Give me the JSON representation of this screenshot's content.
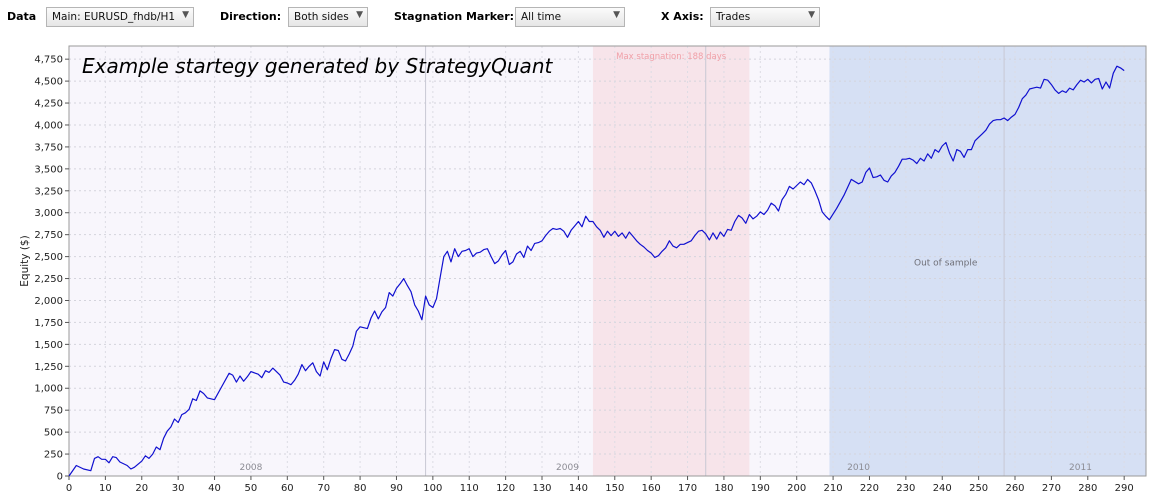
{
  "toolbar": {
    "data_label": "Data",
    "data_value": "Main: EURUSD_fhdb/H1",
    "direction_label": "Direction:",
    "direction_value": "Both sides",
    "stagnation_label": "Stagnation Marker:",
    "stagnation_value": "All time",
    "xaxis_label": "X Axis:",
    "xaxis_value": "Trades",
    "dropdown_arrow_icon": "chevron-down-icon"
  },
  "chart_data": {
    "type": "line",
    "title": "Example startegy generated by StrategyQuant",
    "ylabel": "Equity ($)",
    "xlabel": "",
    "xlim": [
      0,
      296
    ],
    "ylim": [
      0,
      4900
    ],
    "grid": true,
    "x_ticks": [
      0,
      10,
      20,
      30,
      40,
      50,
      60,
      70,
      80,
      90,
      100,
      110,
      120,
      130,
      140,
      150,
      160,
      170,
      180,
      190,
      200,
      210,
      220,
      230,
      240,
      250,
      260,
      270,
      280,
      290
    ],
    "y_ticks": [
      0,
      250,
      500,
      750,
      1000,
      1250,
      1500,
      1750,
      2000,
      2250,
      2500,
      2750,
      3000,
      3250,
      3500,
      3750,
      4000,
      4250,
      4500,
      4750
    ],
    "year_labels": [
      {
        "label": "2008",
        "x": 50
      },
      {
        "label": "2009",
        "x": 137
      },
      {
        "label": "2010",
        "x": 217
      },
      {
        "label": "2011",
        "x": 278
      }
    ],
    "year_boundaries": [
      98,
      175,
      257
    ],
    "stagnation": {
      "label": "Max stagnation: 188 days",
      "start": 144,
      "end": 187
    },
    "out_of_sample": {
      "label": "Out of sample",
      "start": 209,
      "end": 296
    },
    "colors": {
      "line": "#1010d0",
      "stagnation_band": "#f7e4ea",
      "stagnation_text": "#f0a0a8",
      "oos_band": "#d6e0f4",
      "plot_bg": "#f8f6fc"
    },
    "series": [
      {
        "values": [
          [
            0,
            0
          ],
          [
            2,
            120
          ],
          [
            4,
            80
          ],
          [
            6,
            60
          ],
          [
            7,
            200
          ],
          [
            8,
            220
          ],
          [
            9,
            190
          ],
          [
            10,
            190
          ],
          [
            11,
            150
          ],
          [
            12,
            220
          ],
          [
            13,
            210
          ],
          [
            14,
            160
          ],
          [
            16,
            120
          ],
          [
            17,
            80
          ],
          [
            18,
            100
          ],
          [
            20,
            170
          ],
          [
            21,
            230
          ],
          [
            22,
            200
          ],
          [
            23,
            250
          ],
          [
            24,
            330
          ],
          [
            25,
            300
          ],
          [
            26,
            430
          ],
          [
            27,
            510
          ],
          [
            28,
            560
          ],
          [
            29,
            650
          ],
          [
            30,
            610
          ],
          [
            31,
            700
          ],
          [
            32,
            720
          ],
          [
            33,
            760
          ],
          [
            34,
            880
          ],
          [
            35,
            860
          ],
          [
            36,
            970
          ],
          [
            37,
            940
          ],
          [
            38,
            890
          ],
          [
            40,
            870
          ],
          [
            42,
            1020
          ],
          [
            44,
            1170
          ],
          [
            45,
            1150
          ],
          [
            46,
            1070
          ],
          [
            47,
            1140
          ],
          [
            48,
            1080
          ],
          [
            49,
            1130
          ],
          [
            50,
            1190
          ],
          [
            52,
            1160
          ],
          [
            53,
            1120
          ],
          [
            54,
            1200
          ],
          [
            55,
            1180
          ],
          [
            56,
            1230
          ],
          [
            57,
            1190
          ],
          [
            58,
            1150
          ],
          [
            59,
            1070
          ],
          [
            60,
            1060
          ],
          [
            61,
            1040
          ],
          [
            62,
            1090
          ],
          [
            63,
            1160
          ],
          [
            64,
            1270
          ],
          [
            65,
            1200
          ],
          [
            66,
            1250
          ],
          [
            67,
            1290
          ],
          [
            68,
            1190
          ],
          [
            69,
            1140
          ],
          [
            70,
            1300
          ],
          [
            71,
            1210
          ],
          [
            72,
            1340
          ],
          [
            73,
            1440
          ],
          [
            74,
            1430
          ],
          [
            75,
            1330
          ],
          [
            76,
            1310
          ],
          [
            77,
            1390
          ],
          [
            78,
            1480
          ],
          [
            79,
            1650
          ],
          [
            80,
            1700
          ],
          [
            81,
            1690
          ],
          [
            82,
            1680
          ],
          [
            83,
            1800
          ],
          [
            84,
            1880
          ],
          [
            85,
            1790
          ],
          [
            86,
            1870
          ],
          [
            87,
            1920
          ],
          [
            88,
            2090
          ],
          [
            89,
            2050
          ],
          [
            90,
            2140
          ],
          [
            91,
            2190
          ],
          [
            92,
            2250
          ],
          [
            93,
            2170
          ],
          [
            94,
            2100
          ],
          [
            95,
            1950
          ],
          [
            96,
            1880
          ],
          [
            97,
            1780
          ],
          [
            98,
            2050
          ],
          [
            99,
            1950
          ],
          [
            100,
            1920
          ],
          [
            101,
            2020
          ],
          [
            102,
            2260
          ],
          [
            103,
            2500
          ],
          [
            104,
            2560
          ],
          [
            105,
            2440
          ],
          [
            106,
            2590
          ],
          [
            107,
            2500
          ],
          [
            108,
            2560
          ],
          [
            109,
            2570
          ],
          [
            110,
            2590
          ],
          [
            111,
            2500
          ],
          [
            112,
            2540
          ],
          [
            113,
            2550
          ],
          [
            114,
            2580
          ],
          [
            115,
            2590
          ],
          [
            116,
            2500
          ],
          [
            117,
            2420
          ],
          [
            118,
            2450
          ],
          [
            119,
            2520
          ],
          [
            120,
            2570
          ],
          [
            121,
            2410
          ],
          [
            122,
            2440
          ],
          [
            123,
            2530
          ],
          [
            124,
            2560
          ],
          [
            125,
            2490
          ],
          [
            126,
            2620
          ],
          [
            127,
            2570
          ],
          [
            128,
            2650
          ],
          [
            129,
            2660
          ],
          [
            130,
            2680
          ],
          [
            131,
            2740
          ],
          [
            132,
            2790
          ],
          [
            133,
            2820
          ],
          [
            134,
            2810
          ],
          [
            135,
            2820
          ],
          [
            136,
            2790
          ],
          [
            137,
            2720
          ],
          [
            138,
            2800
          ],
          [
            139,
            2850
          ],
          [
            140,
            2900
          ],
          [
            141,
            2840
          ],
          [
            142,
            2960
          ],
          [
            143,
            2900
          ],
          [
            144,
            2900
          ],
          [
            145,
            2840
          ],
          [
            146,
            2800
          ],
          [
            147,
            2720
          ],
          [
            148,
            2790
          ],
          [
            149,
            2740
          ],
          [
            150,
            2790
          ],
          [
            151,
            2730
          ],
          [
            152,
            2770
          ],
          [
            153,
            2710
          ],
          [
            154,
            2780
          ],
          [
            155,
            2730
          ],
          [
            156,
            2680
          ],
          [
            157,
            2640
          ],
          [
            158,
            2610
          ],
          [
            159,
            2570
          ],
          [
            160,
            2540
          ],
          [
            161,
            2490
          ],
          [
            162,
            2510
          ],
          [
            163,
            2560
          ],
          [
            164,
            2600
          ],
          [
            165,
            2680
          ],
          [
            166,
            2620
          ],
          [
            167,
            2600
          ],
          [
            168,
            2640
          ],
          [
            169,
            2640
          ],
          [
            170,
            2660
          ],
          [
            171,
            2680
          ],
          [
            172,
            2740
          ],
          [
            173,
            2790
          ],
          [
            174,
            2800
          ],
          [
            175,
            2760
          ],
          [
            176,
            2690
          ],
          [
            177,
            2770
          ],
          [
            178,
            2700
          ],
          [
            179,
            2780
          ],
          [
            180,
            2730
          ],
          [
            181,
            2810
          ],
          [
            182,
            2800
          ],
          [
            183,
            2900
          ],
          [
            184,
            2970
          ],
          [
            185,
            2940
          ],
          [
            186,
            2880
          ],
          [
            187,
            2980
          ],
          [
            188,
            2930
          ],
          [
            189,
            2960
          ],
          [
            190,
            3010
          ],
          [
            191,
            2980
          ],
          [
            192,
            3030
          ],
          [
            193,
            3110
          ],
          [
            194,
            3080
          ],
          [
            195,
            3020
          ],
          [
            196,
            3150
          ],
          [
            197,
            3210
          ],
          [
            198,
            3300
          ],
          [
            199,
            3270
          ],
          [
            200,
            3310
          ],
          [
            201,
            3350
          ],
          [
            202,
            3320
          ],
          [
            203,
            3380
          ],
          [
            204,
            3340
          ],
          [
            205,
            3250
          ],
          [
            206,
            3150
          ],
          [
            207,
            3010
          ],
          [
            208,
            2960
          ],
          [
            209,
            2920
          ],
          [
            211,
            3050
          ],
          [
            213,
            3200
          ],
          [
            215,
            3380
          ],
          [
            217,
            3330
          ],
          [
            218,
            3350
          ],
          [
            219,
            3460
          ],
          [
            220,
            3510
          ],
          [
            221,
            3400
          ],
          [
            222,
            3410
          ],
          [
            223,
            3430
          ],
          [
            224,
            3370
          ],
          [
            225,
            3350
          ],
          [
            226,
            3420
          ],
          [
            227,
            3460
          ],
          [
            228,
            3530
          ],
          [
            229,
            3610
          ],
          [
            230,
            3610
          ],
          [
            231,
            3620
          ],
          [
            232,
            3600
          ],
          [
            233,
            3560
          ],
          [
            234,
            3620
          ],
          [
            235,
            3590
          ],
          [
            236,
            3670
          ],
          [
            237,
            3620
          ],
          [
            238,
            3720
          ],
          [
            239,
            3690
          ],
          [
            240,
            3760
          ],
          [
            241,
            3800
          ],
          [
            242,
            3680
          ],
          [
            243,
            3590
          ],
          [
            244,
            3720
          ],
          [
            245,
            3700
          ],
          [
            246,
            3630
          ],
          [
            247,
            3720
          ],
          [
            248,
            3720
          ],
          [
            249,
            3820
          ],
          [
            250,
            3860
          ],
          [
            251,
            3900
          ],
          [
            252,
            3940
          ],
          [
            253,
            4010
          ],
          [
            254,
            4050
          ],
          [
            255,
            4060
          ],
          [
            256,
            4060
          ],
          [
            257,
            4080
          ],
          [
            258,
            4050
          ],
          [
            259,
            4090
          ],
          [
            260,
            4120
          ],
          [
            261,
            4200
          ],
          [
            262,
            4300
          ],
          [
            263,
            4340
          ],
          [
            264,
            4410
          ],
          [
            265,
            4420
          ],
          [
            266,
            4430
          ],
          [
            267,
            4420
          ],
          [
            268,
            4520
          ],
          [
            269,
            4510
          ],
          [
            270,
            4460
          ],
          [
            271,
            4400
          ],
          [
            272,
            4360
          ],
          [
            273,
            4390
          ],
          [
            274,
            4370
          ],
          [
            275,
            4420
          ],
          [
            276,
            4400
          ],
          [
            277,
            4460
          ],
          [
            278,
            4510
          ],
          [
            279,
            4490
          ],
          [
            280,
            4520
          ],
          [
            281,
            4480
          ],
          [
            282,
            4520
          ],
          [
            283,
            4530
          ],
          [
            284,
            4410
          ],
          [
            285,
            4490
          ],
          [
            286,
            4420
          ],
          [
            287,
            4590
          ],
          [
            288,
            4670
          ],
          [
            289,
            4650
          ],
          [
            290,
            4620
          ]
        ]
      }
    ]
  }
}
